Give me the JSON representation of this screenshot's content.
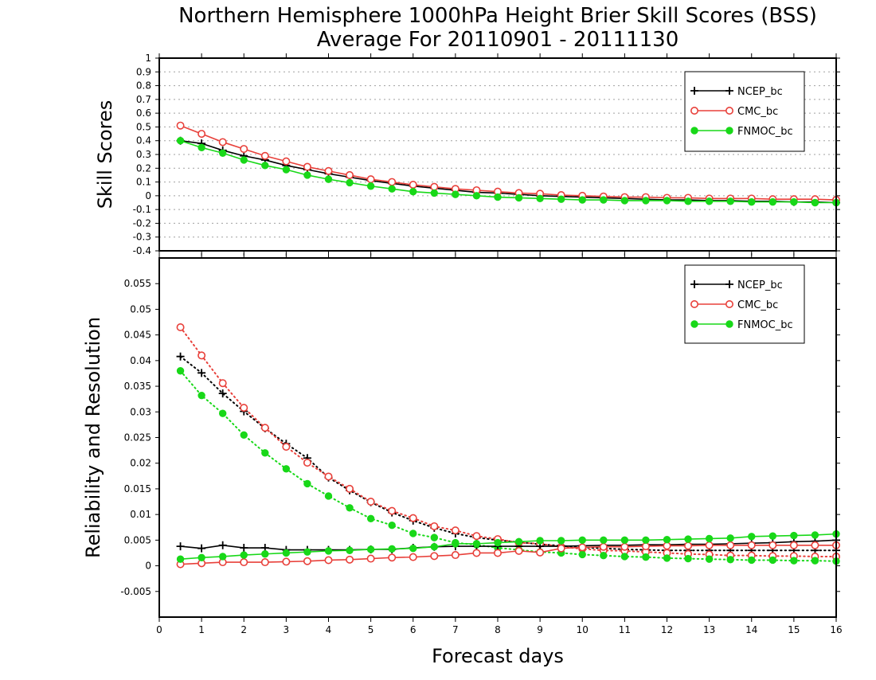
{
  "title_line1": "Northern Hemisphere 1000hPa Height Brier Skill Scores (BSS)",
  "title_line2": "Average For 20110901 - 20111130",
  "xlabel": "Forecast days",
  "colors": {
    "NCEP_bc": "#000000",
    "CMC_bc": "#e8403a",
    "FNMOC_bc": "#18d818"
  },
  "chart_data": [
    {
      "type": "line",
      "ylabel": "Skill Scores",
      "xlim": [
        0,
        16
      ],
      "ylim": [
        -0.4,
        1
      ],
      "xticks": [
        0,
        1,
        2,
        3,
        4,
        5,
        6,
        7,
        8,
        9,
        10,
        11,
        12,
        13,
        14,
        15,
        16
      ],
      "yticks": [
        -0.4,
        -0.3,
        -0.2,
        -0.1,
        0,
        0.1,
        0.2,
        0.3,
        0.4,
        0.5,
        0.6,
        0.7,
        0.8,
        0.9,
        1
      ],
      "ytick_labels": [
        "-0.4",
        "-0.3",
        "-0.2",
        "-0.1",
        "0",
        "0.1",
        "0.2",
        "0.3",
        "0.4",
        "0.5",
        "0.6",
        "0.7",
        "0.8",
        "0.9",
        "1"
      ],
      "grid": true,
      "legend": "top-right",
      "x": [
        0.5,
        1,
        1.5,
        2,
        2.5,
        3,
        3.5,
        4,
        4.5,
        5,
        5.5,
        6,
        6.5,
        7,
        7.5,
        8,
        8.5,
        9,
        9.5,
        10,
        10.5,
        11,
        11.5,
        12,
        12.5,
        13,
        13.5,
        14,
        14.5,
        15,
        15.5,
        16
      ],
      "series": [
        {
          "name": "NCEP_bc",
          "style": "solid",
          "marker": "plus",
          "values": [
            0.4,
            0.38,
            0.33,
            0.29,
            0.26,
            0.22,
            0.19,
            0.16,
            0.135,
            0.11,
            0.09,
            0.07,
            0.055,
            0.04,
            0.025,
            0.02,
            0.01,
            0.0,
            -0.005,
            -0.01,
            -0.015,
            -0.02,
            -0.025,
            -0.03,
            -0.03,
            -0.035,
            -0.035,
            -0.04,
            -0.04,
            -0.045,
            -0.045,
            -0.05
          ]
        },
        {
          "name": "CMC_bc",
          "style": "solid",
          "marker": "circle-open",
          "values": [
            0.51,
            0.45,
            0.39,
            0.34,
            0.29,
            0.25,
            0.21,
            0.18,
            0.15,
            0.12,
            0.1,
            0.08,
            0.065,
            0.05,
            0.04,
            0.03,
            0.02,
            0.015,
            0.005,
            0.0,
            -0.005,
            -0.01,
            -0.01,
            -0.015,
            -0.015,
            -0.02,
            -0.02,
            -0.02,
            -0.025,
            -0.025,
            -0.025,
            -0.03
          ]
        },
        {
          "name": "FNMOC_bc",
          "style": "solid",
          "marker": "circle-filled",
          "values": [
            0.4,
            0.35,
            0.31,
            0.26,
            0.22,
            0.19,
            0.15,
            0.12,
            0.095,
            0.07,
            0.05,
            0.03,
            0.02,
            0.01,
            0.0,
            -0.01,
            -0.015,
            -0.02,
            -0.025,
            -0.03,
            -0.03,
            -0.035,
            -0.035,
            -0.035,
            -0.04,
            -0.04,
            -0.04,
            -0.045,
            -0.045,
            -0.045,
            -0.05,
            -0.05
          ]
        }
      ]
    },
    {
      "type": "line",
      "ylabel": "Reliability and Resolution",
      "xlabel": "Forecast days",
      "xlim": [
        0,
        16
      ],
      "ylim": [
        -0.01,
        0.06
      ],
      "xticks": [
        0,
        1,
        2,
        3,
        4,
        5,
        6,
        7,
        8,
        9,
        10,
        11,
        12,
        13,
        14,
        15,
        16
      ],
      "yticks": [
        -0.005,
        0,
        0.005,
        0.01,
        0.015,
        0.02,
        0.025,
        0.03,
        0.035,
        0.04,
        0.045,
        0.05,
        0.055
      ],
      "ytick_labels": [
        "-0.005",
        "0",
        "0.005",
        "0.01",
        "0.015",
        "0.02",
        "0.025",
        "0.03",
        "0.035",
        "0.04",
        "0.045",
        "0.05",
        "0.055"
      ],
      "grid": false,
      "legend": "top-right",
      "x": [
        0.5,
        1,
        1.5,
        2,
        2.5,
        3,
        3.5,
        4,
        4.5,
        5,
        5.5,
        6,
        6.5,
        7,
        7.5,
        8,
        8.5,
        9,
        9.5,
        10,
        10.5,
        11,
        11.5,
        12,
        12.5,
        13,
        13.5,
        14,
        14.5,
        15,
        15.5,
        16
      ],
      "series": [
        {
          "name": "NCEP_bc",
          "style": "dotted",
          "marker": "plus",
          "values": [
            0.0408,
            0.0376,
            0.0336,
            0.0301,
            0.0268,
            0.0238,
            0.021,
            0.0172,
            0.0147,
            0.0124,
            0.0104,
            0.0088,
            0.0074,
            0.0063,
            0.0055,
            0.005,
            0.0046,
            0.0042,
            0.0039,
            0.0036,
            0.0034,
            0.0032,
            0.0031,
            0.003,
            0.003,
            0.003,
            0.003,
            0.003,
            0.003,
            0.003,
            0.003,
            0.003
          ]
        },
        {
          "name": "CMC_bc",
          "style": "dotted",
          "marker": "circle-open",
          "values": [
            0.0465,
            0.041,
            0.0356,
            0.0308,
            0.0269,
            0.0232,
            0.0201,
            0.0174,
            0.015,
            0.0125,
            0.0107,
            0.0093,
            0.0077,
            0.0069,
            0.0058,
            0.0052,
            0.0045,
            0.0043,
            0.0037,
            0.0033,
            0.003,
            0.0029,
            0.0027,
            0.0025,
            0.0023,
            0.0022,
            0.002,
            0.002,
            0.0019,
            0.0019,
            0.0018,
            0.0018
          ]
        },
        {
          "name": "FNMOC_bc",
          "style": "dotted",
          "marker": "circle-filled",
          "values": [
            0.038,
            0.0332,
            0.0297,
            0.0255,
            0.022,
            0.0189,
            0.016,
            0.0136,
            0.0113,
            0.0092,
            0.0079,
            0.0063,
            0.0055,
            0.0045,
            0.0041,
            0.0035,
            0.0031,
            0.0027,
            0.0025,
            0.0022,
            0.002,
            0.0018,
            0.0017,
            0.0015,
            0.0014,
            0.0013,
            0.0012,
            0.0011,
            0.0011,
            0.001,
            0.001,
            0.0009
          ]
        },
        {
          "name": "NCEP_bc",
          "style": "solid",
          "marker": "plus",
          "values": [
            0.0038,
            0.0034,
            0.004,
            0.0035,
            0.0035,
            0.0031,
            0.0031,
            0.0031,
            0.0031,
            0.0032,
            0.0032,
            0.0035,
            0.0037,
            0.0038,
            0.0038,
            0.0038,
            0.0038,
            0.0038,
            0.0038,
            0.0039,
            0.004,
            0.004,
            0.0041,
            0.0041,
            0.0042,
            0.0042,
            0.0043,
            0.0044,
            0.0045,
            0.0047,
            0.0048,
            0.005
          ]
        },
        {
          "name": "CMC_bc",
          "style": "solid",
          "marker": "circle-open",
          "values": [
            0.0003,
            0.0005,
            0.0007,
            0.0007,
            0.0007,
            0.0008,
            0.0009,
            0.0011,
            0.0012,
            0.0014,
            0.0016,
            0.0017,
            0.0019,
            0.0021,
            0.0025,
            0.0025,
            0.0029,
            0.0026,
            0.0034,
            0.0036,
            0.0037,
            0.0037,
            0.0038,
            0.0039,
            0.0039,
            0.004,
            0.004,
            0.004,
            0.004,
            0.004,
            0.004,
            0.004
          ]
        },
        {
          "name": "FNMOC_bc",
          "style": "solid",
          "marker": "circle-filled",
          "values": [
            0.0013,
            0.0016,
            0.0018,
            0.0021,
            0.0023,
            0.0025,
            0.0027,
            0.0029,
            0.003,
            0.0032,
            0.0033,
            0.0034,
            0.0037,
            0.0043,
            0.0043,
            0.0045,
            0.0047,
            0.0049,
            0.0049,
            0.005,
            0.005,
            0.005,
            0.005,
            0.0051,
            0.0052,
            0.0053,
            0.0054,
            0.0057,
            0.0058,
            0.0059,
            0.006,
            0.0062
          ]
        }
      ]
    }
  ]
}
